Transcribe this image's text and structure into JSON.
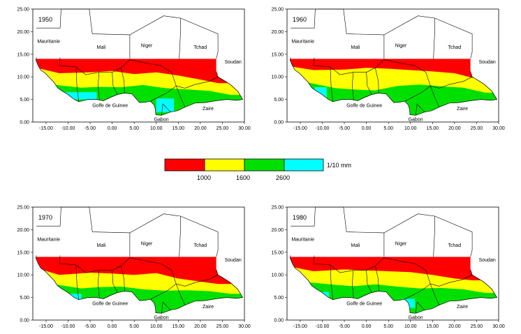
{
  "maps": [
    {
      "year": "1950"
    },
    {
      "year": "1960"
    },
    {
      "year": "1970"
    },
    {
      "year": "1980"
    }
  ],
  "axes": {
    "x_ticks": [
      "-15.00",
      "-10.00",
      "-5.00",
      "0.00",
      "5.00",
      "10.00",
      "15.00",
      "20.00",
      "25.00",
      "30.00"
    ],
    "y_ticks": [
      "0.00",
      "5.00",
      "10.00",
      "15.00",
      "20.00",
      "25.00"
    ],
    "x_range": [
      -18,
      30
    ],
    "y_range": [
      0,
      25
    ]
  },
  "labels": {
    "mauritanie": "Mauritanie",
    "mali": "Mali",
    "niger": "Niger",
    "tchad": "Tchad",
    "soudan": "Soudan",
    "golfe": "Golfe de Guinee",
    "zaire": "Zaire",
    "gabon": "Gabon"
  },
  "legend": {
    "unit": "1/10 mm",
    "thresholds": [
      "1000",
      "1600",
      "2600"
    ],
    "classes": [
      {
        "color": "#ff0000"
      },
      {
        "color": "#ffff00"
      },
      {
        "color": "#00e000"
      },
      {
        "color": "#00ffff"
      }
    ]
  }
}
